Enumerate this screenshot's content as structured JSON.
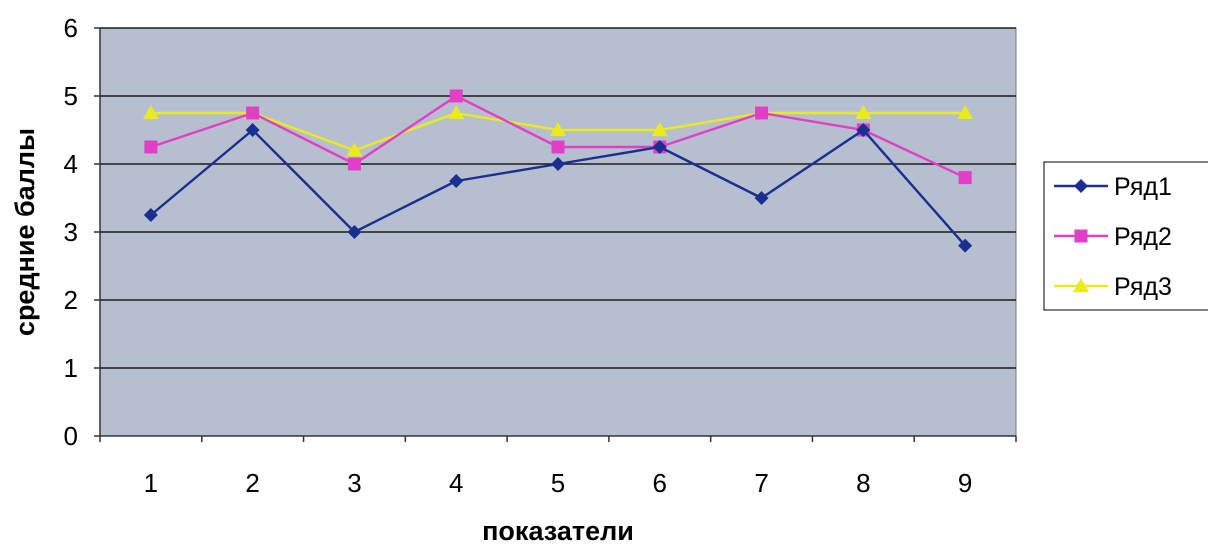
{
  "chart_data": {
    "type": "line",
    "title": "",
    "xlabel": "показатели",
    "ylabel": "средние баллы",
    "categories": [
      "1",
      "2",
      "3",
      "4",
      "5",
      "6",
      "7",
      "8",
      "9"
    ],
    "ylim": [
      0,
      6
    ],
    "yticks": [
      "0",
      "1",
      "2",
      "3",
      "4",
      "5",
      "6"
    ],
    "grid": true,
    "legend_position": "right",
    "plot_background": "#b5bfcf",
    "series": [
      {
        "name": "Ряд1",
        "color": "#1a2f8f",
        "marker": "diamond",
        "values": [
          3.25,
          4.5,
          3.0,
          3.75,
          4.0,
          4.25,
          3.5,
          4.5,
          2.8
        ]
      },
      {
        "name": "Ряд2",
        "color": "#e23fc8",
        "marker": "square",
        "values": [
          4.25,
          4.75,
          4.0,
          5.0,
          4.25,
          4.25,
          4.75,
          4.5,
          3.8
        ]
      },
      {
        "name": "Ряд3",
        "color": "#eaea1c",
        "marker": "triangle",
        "values": [
          4.75,
          4.75,
          4.2,
          4.75,
          4.5,
          4.5,
          4.75,
          4.75,
          4.75
        ]
      }
    ]
  }
}
